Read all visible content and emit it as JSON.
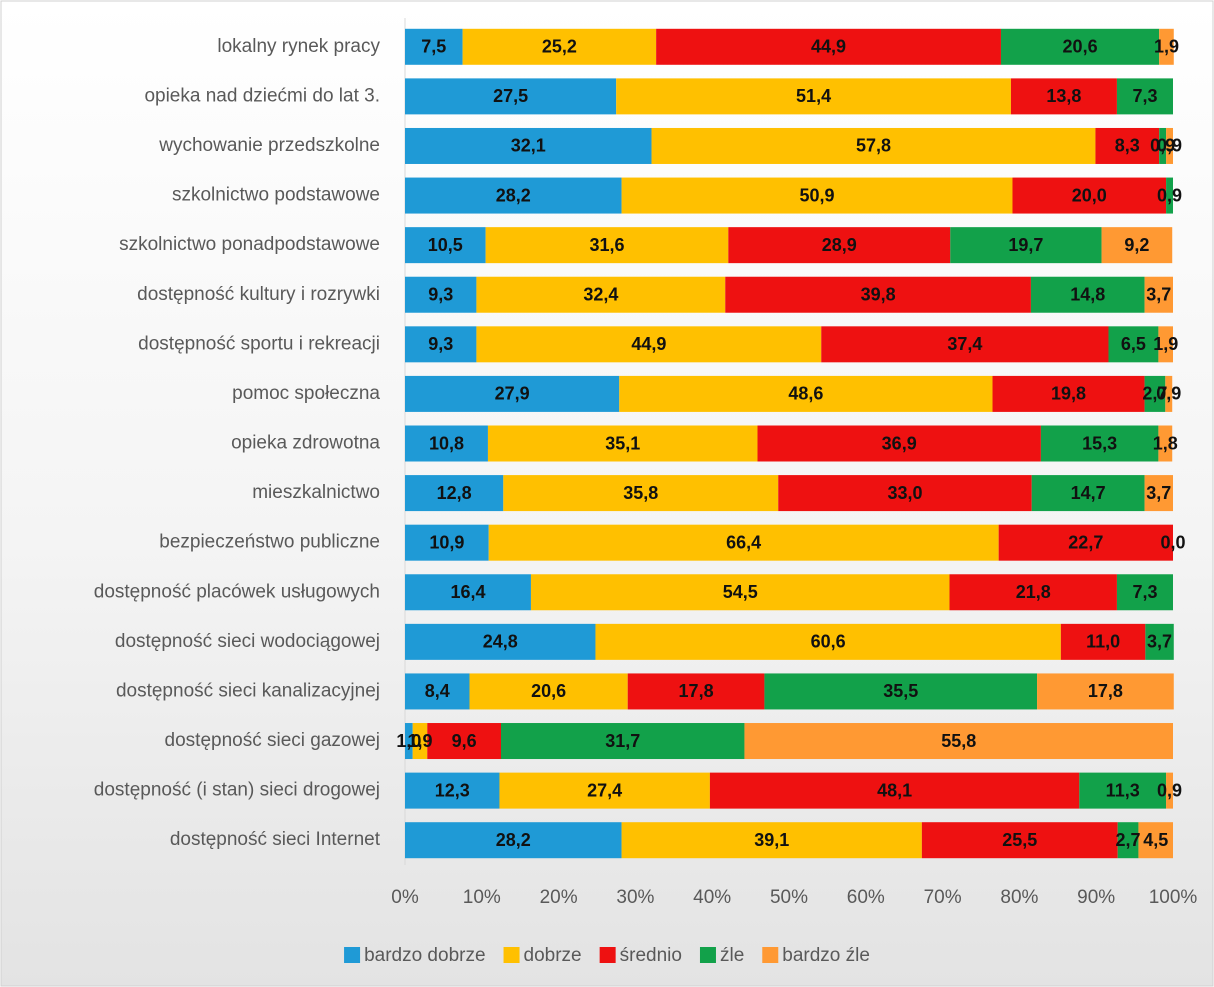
{
  "chart_data": {
    "type": "stacked-barh",
    "categories": [
      "lokalny rynek pracy",
      "opieka nad dziećmi do lat 3.",
      "wychowanie przedszkolne",
      "szkolnictwo podstawowe ",
      "szkolnictwo ponadpodstawowe",
      "dostępność kultury i rozrywki",
      "dostępność sportu i rekreacji",
      "pomoc społeczna",
      "opieka zdrowotna",
      "mieszkalnictwo",
      "bezpieczeństwo publiczne",
      "dostępność placówek usługowych",
      "dostępność sieci wodociągowej",
      "dostępność sieci kanalizacyjnej",
      "dostępność sieci gazowej",
      "dostępność (i stan) sieci drogowej",
      "dostępność sieci Internet"
    ],
    "series": [
      {
        "name": "bardzo dobrze",
        "color": "#1f9ad6",
        "values": [
          7.5,
          27.5,
          32.1,
          28.2,
          10.5,
          9.3,
          9.3,
          27.9,
          10.8,
          12.8,
          10.9,
          16.4,
          24.8,
          8.4,
          1.0,
          12.3,
          28.2
        ],
        "value_labels": [
          "7,5",
          "27,5",
          "32,1",
          "28,2",
          "10,5",
          "9,3",
          "9,3",
          "27,9",
          "10,8",
          "12,8",
          "10,9",
          "16,4",
          "24,8",
          "8,4",
          "1,0",
          "12,3",
          "28,2"
        ]
      },
      {
        "name": "dobrze",
        "color": "#ffc000",
        "values": [
          25.2,
          51.4,
          57.8,
          50.9,
          31.6,
          32.4,
          44.9,
          48.6,
          35.1,
          35.8,
          66.4,
          54.5,
          60.6,
          20.6,
          1.9,
          27.4,
          39.1
        ],
        "value_labels": [
          "25,2",
          "51,4",
          "57,8",
          "50,9",
          "31,6",
          "32,4",
          "44,9",
          "48,6",
          "35,1",
          "35,8",
          "66,4",
          "54,5",
          "60,6",
          "20,6",
          "1,9",
          "27,4",
          "39,1"
        ]
      },
      {
        "name": "średnio",
        "color": "#ee1111",
        "values": [
          44.9,
          13.8,
          8.3,
          20.0,
          28.9,
          39.8,
          37.4,
          19.8,
          36.9,
          33.0,
          22.7,
          21.8,
          11.0,
          17.8,
          9.6,
          48.1,
          25.5
        ],
        "value_labels": [
          "44,9",
          "13,8",
          "8,3",
          "20,0",
          "28,9",
          "39,8",
          "37,4",
          "19,8",
          "36,9",
          "33,0",
          "22,7",
          "21,8",
          "11,0",
          "17,8",
          "9,6",
          "48,1",
          "25,5"
        ]
      },
      {
        "name": "źle",
        "color": "#12a14a",
        "values": [
          20.6,
          7.3,
          0.9,
          0.9,
          19.7,
          14.8,
          6.5,
          2.7,
          15.3,
          14.7,
          0.0,
          7.3,
          3.7,
          35.5,
          31.7,
          11.3,
          2.7
        ],
        "value_labels": [
          "20,6",
          "7,3",
          "0,9",
          "0,9",
          "19,7",
          "14,8",
          "6,5",
          "2,7",
          "15,3",
          "14,7",
          "0,0",
          "7,3",
          "3,7",
          "35,5",
          "31,7",
          "11,3",
          "2,7"
        ]
      },
      {
        "name": "bardzo źle",
        "color": "#ff9933",
        "values": [
          1.9,
          null,
          0.9,
          null,
          9.2,
          3.7,
          1.9,
          0.9,
          1.8,
          3.7,
          null,
          null,
          null,
          17.8,
          55.8,
          0.9,
          4.5
        ],
        "value_labels": [
          "1,9",
          null,
          "0,9",
          null,
          "9,2",
          "3,7",
          "1,9",
          "0,9",
          "1,8",
          "3,7",
          null,
          null,
          null,
          "17,8",
          "55,8",
          "0,9",
          "4,5"
        ]
      }
    ],
    "xlim": [
      0,
      100
    ],
    "xticks": [
      {
        "value": 0,
        "label": "0%"
      },
      {
        "value": 10,
        "label": "10%"
      },
      {
        "value": 20,
        "label": "20%"
      },
      {
        "value": 30,
        "label": "30%"
      },
      {
        "value": 40,
        "label": "40%"
      },
      {
        "value": 50,
        "label": "50%"
      },
      {
        "value": 60,
        "label": "60%"
      },
      {
        "value": 70,
        "label": "70%"
      },
      {
        "value": 80,
        "label": "80%"
      },
      {
        "value": 90,
        "label": "90%"
      },
      {
        "value": 100,
        "label": "100%"
      }
    ],
    "legend": "bottom"
  }
}
